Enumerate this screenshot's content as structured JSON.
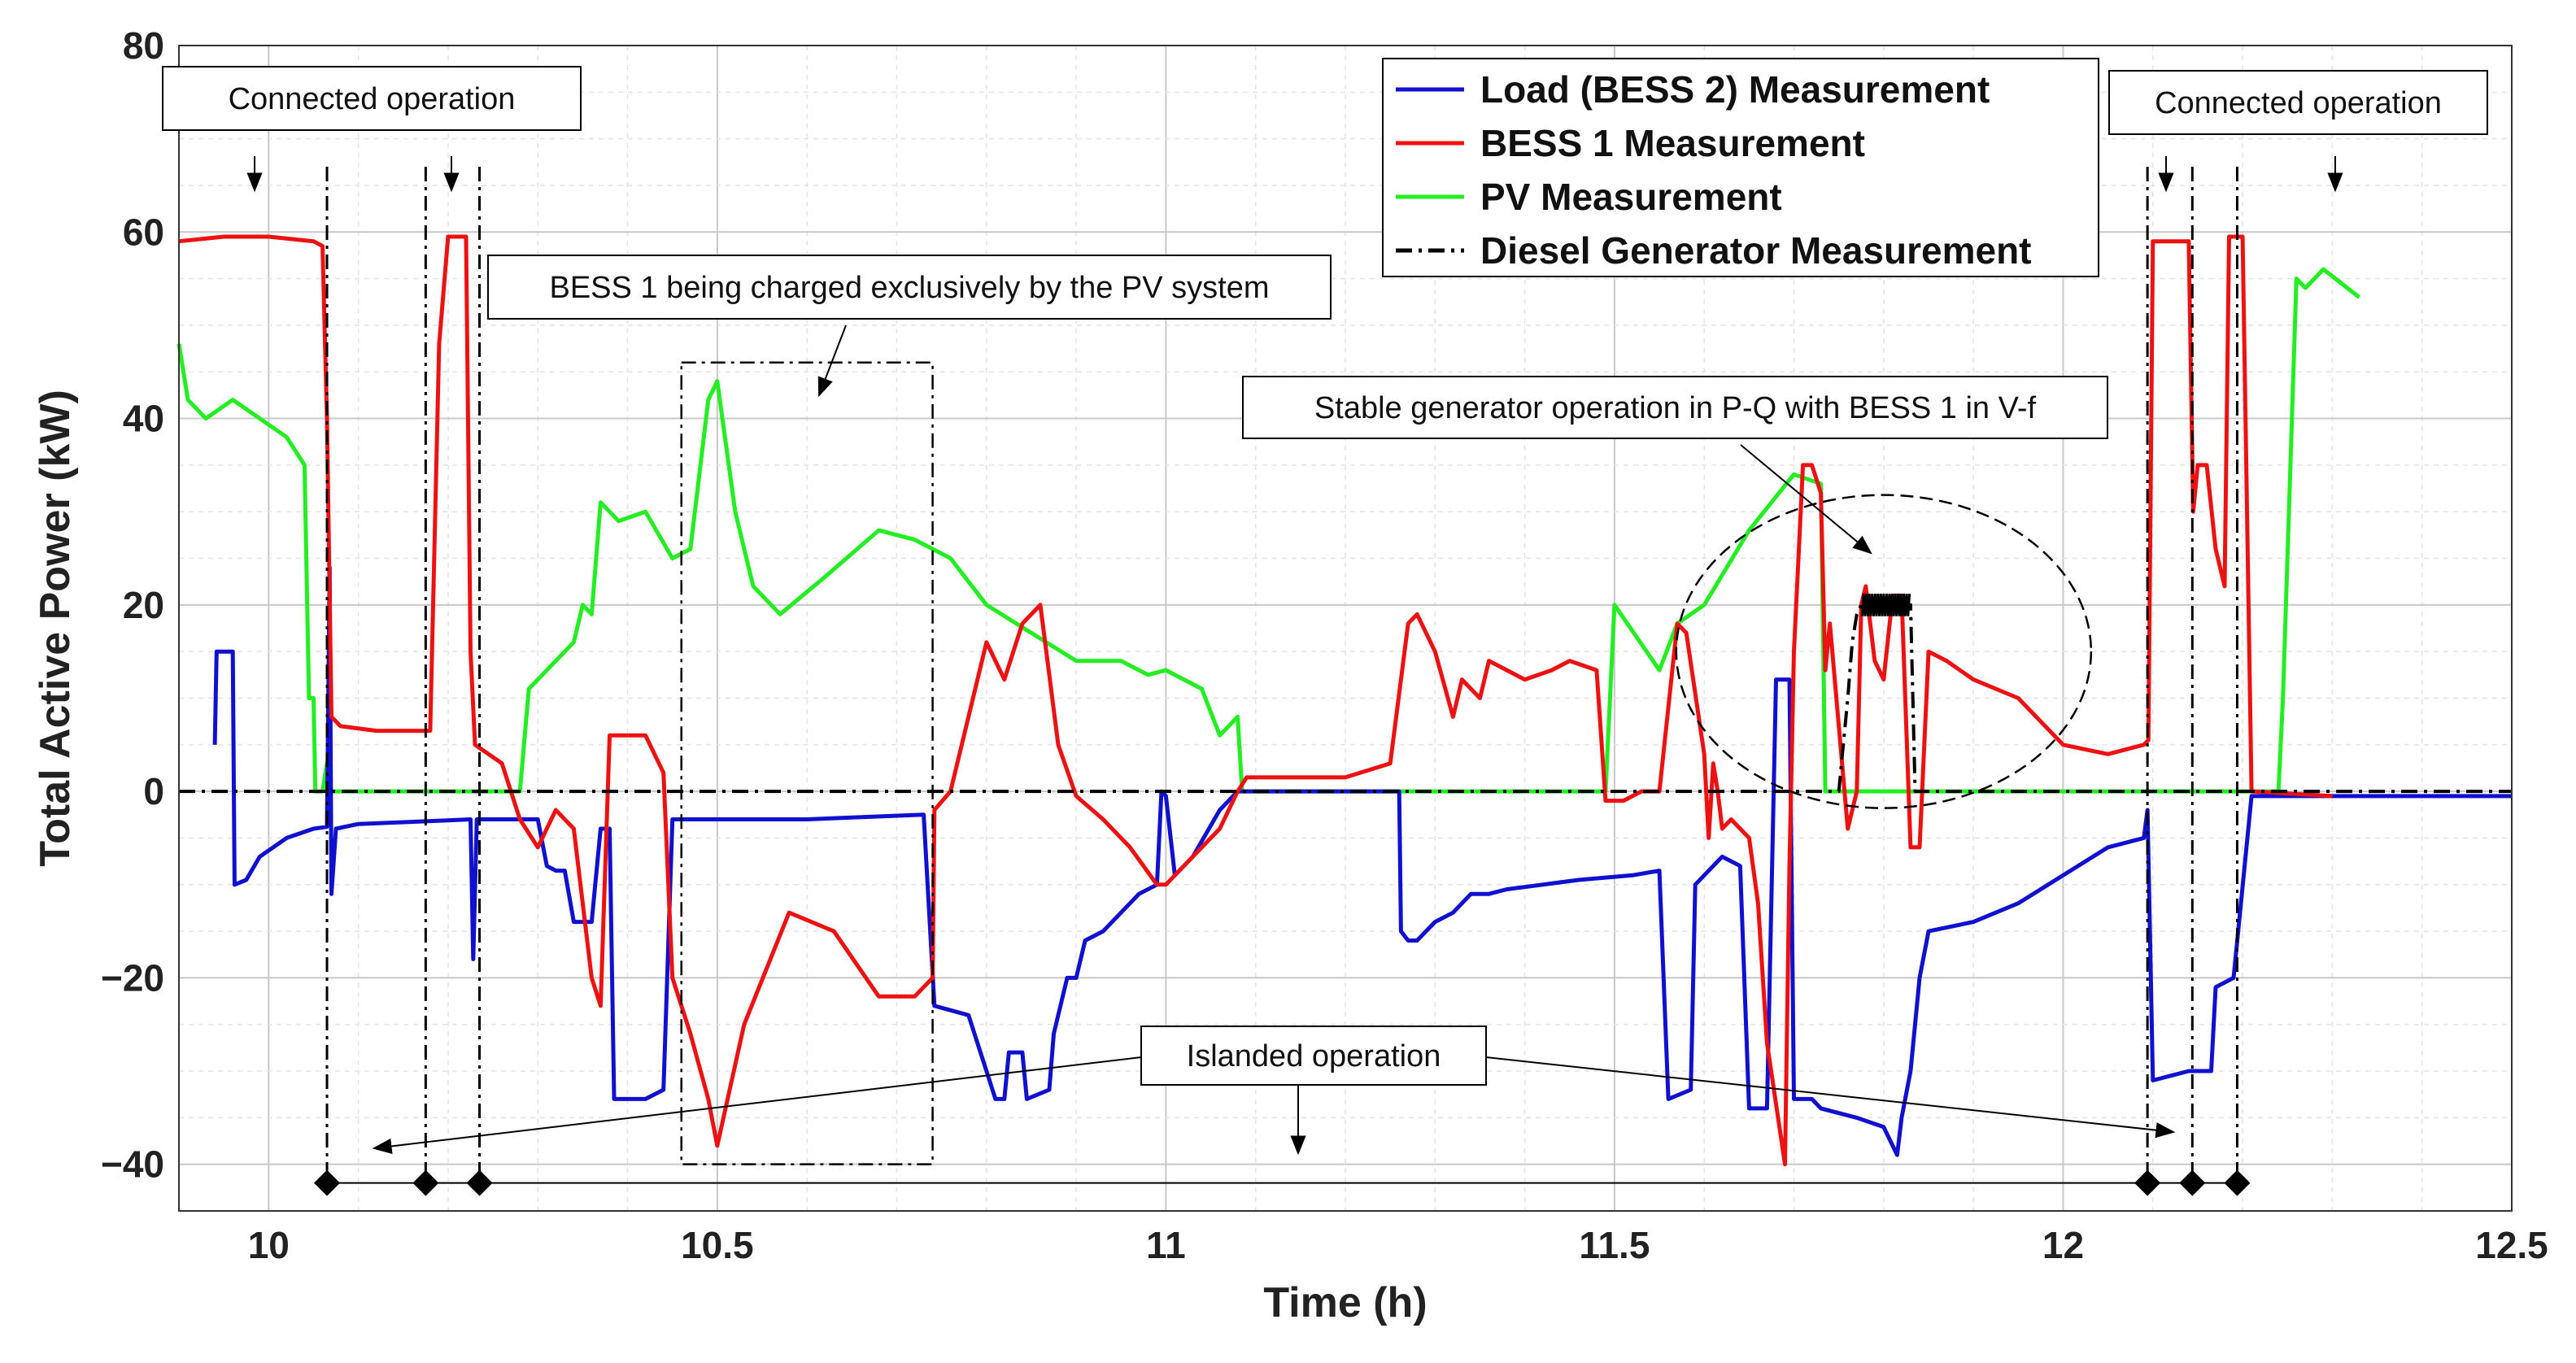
{
  "chart_data": {
    "type": "line",
    "title": "",
    "xlabel": "Time (h)",
    "ylabel": "Total Active Power (kW)",
    "xlim": [
      9.9,
      12.5
    ],
    "ylim": [
      -45,
      80
    ],
    "xticks": [
      10,
      10.5,
      11,
      11.5,
      12,
      12.5
    ],
    "xtick_labels": [
      "10",
      "10.5",
      "11",
      "11.5",
      "12",
      "12.5"
    ],
    "yticks": [
      -40,
      -20,
      0,
      20,
      40,
      60,
      80
    ],
    "ytick_labels": [
      "−40",
      "−20",
      "0",
      "20",
      "40",
      "60",
      "80"
    ],
    "grid": true,
    "legend_position": "top-center",
    "series": [
      {
        "name": "Load (BESS 2) Measurement",
        "color": "#1010d0",
        "style": "solid",
        "points": [
          [
            9.94,
            5
          ],
          [
            9.942,
            15
          ],
          [
            9.96,
            15
          ],
          [
            9.962,
            -10
          ],
          [
            9.975,
            -9.5
          ],
          [
            9.99,
            -7
          ],
          [
            10.02,
            -5
          ],
          [
            10.05,
            -4
          ],
          [
            10.065,
            -3.8
          ],
          [
            10.068,
            24
          ],
          [
            10.07,
            -11
          ],
          [
            10.075,
            -4
          ],
          [
            10.1,
            -3.5
          ],
          [
            10.15,
            -3.3
          ],
          [
            10.2,
            -3.1
          ],
          [
            10.225,
            -3
          ],
          [
            10.228,
            -18
          ],
          [
            10.232,
            -3
          ],
          [
            10.26,
            -3
          ],
          [
            10.3,
            -3
          ],
          [
            10.31,
            -8
          ],
          [
            10.32,
            -8.5
          ],
          [
            10.33,
            -8.5
          ],
          [
            10.34,
            -14
          ],
          [
            10.36,
            -14
          ],
          [
            10.37,
            -4
          ],
          [
            10.38,
            -4
          ],
          [
            10.385,
            -33
          ],
          [
            10.42,
            -33
          ],
          [
            10.44,
            -32
          ],
          [
            10.45,
            -3
          ],
          [
            10.5,
            -3
          ],
          [
            10.6,
            -3
          ],
          [
            10.73,
            -2.5
          ],
          [
            10.742,
            -23
          ],
          [
            10.78,
            -24
          ],
          [
            10.8,
            -30
          ],
          [
            10.81,
            -33
          ],
          [
            10.82,
            -33
          ],
          [
            10.825,
            -28
          ],
          [
            10.84,
            -28
          ],
          [
            10.845,
            -33
          ],
          [
            10.87,
            -32
          ],
          [
            10.875,
            -26
          ],
          [
            10.89,
            -20
          ],
          [
            10.9,
            -20
          ],
          [
            10.91,
            -16
          ],
          [
            10.93,
            -15
          ],
          [
            10.95,
            -13
          ],
          [
            10.97,
            -11
          ],
          [
            10.99,
            -10
          ],
          [
            10.995,
            0
          ],
          [
            11.0,
            -0.5
          ],
          [
            11.01,
            -9
          ],
          [
            11.03,
            -7
          ],
          [
            11.06,
            -2
          ],
          [
            11.08,
            0
          ],
          [
            11.26,
            0
          ],
          [
            11.262,
            -15
          ],
          [
            11.27,
            -16
          ],
          [
            11.28,
            -16
          ],
          [
            11.3,
            -14
          ],
          [
            11.32,
            -13
          ],
          [
            11.34,
            -11
          ],
          [
            11.36,
            -11
          ],
          [
            11.38,
            -10.5
          ],
          [
            11.42,
            -10
          ],
          [
            11.46,
            -9.5
          ],
          [
            11.52,
            -9
          ],
          [
            11.55,
            -8.5
          ],
          [
            11.56,
            -33
          ],
          [
            11.585,
            -32
          ],
          [
            11.59,
            -10
          ],
          [
            11.6,
            -9
          ],
          [
            11.62,
            -7
          ],
          [
            11.64,
            -8
          ],
          [
            11.65,
            -34
          ],
          [
            11.67,
            -34
          ],
          [
            11.68,
            12
          ],
          [
            11.695,
            12
          ],
          [
            11.7,
            -33
          ],
          [
            11.72,
            -33
          ],
          [
            11.73,
            -34
          ],
          [
            11.77,
            -35
          ],
          [
            11.8,
            -36
          ],
          [
            11.815,
            -39
          ],
          [
            11.82,
            -35
          ],
          [
            11.83,
            -30
          ],
          [
            11.84,
            -20
          ],
          [
            11.85,
            -15
          ],
          [
            11.9,
            -14
          ],
          [
            11.95,
            -12
          ],
          [
            12.0,
            -9
          ],
          [
            12.05,
            -6
          ],
          [
            12.09,
            -5
          ],
          [
            12.094,
            -2
          ],
          [
            12.1,
            -31
          ],
          [
            12.14,
            -30
          ],
          [
            12.15,
            -30
          ],
          [
            12.165,
            -30
          ],
          [
            12.17,
            -21
          ],
          [
            12.19,
            -20
          ],
          [
            12.21,
            -0.5
          ],
          [
            12.3,
            -0.5
          ],
          [
            12.5,
            -0.5
          ]
        ]
      },
      {
        "name": "BESS 1 Measurement",
        "color": "#ee1111",
        "style": "solid",
        "points": [
          [
            9.9,
            59
          ],
          [
            9.95,
            59.5
          ],
          [
            10.0,
            59.5
          ],
          [
            10.05,
            59
          ],
          [
            10.06,
            58.5
          ],
          [
            10.065,
            40
          ],
          [
            10.07,
            8
          ],
          [
            10.08,
            7
          ],
          [
            10.12,
            6.5
          ],
          [
            10.18,
            6.5
          ],
          [
            10.19,
            48
          ],
          [
            10.2,
            59.5
          ],
          [
            10.22,
            59.5
          ],
          [
            10.225,
            15
          ],
          [
            10.23,
            5
          ],
          [
            10.26,
            3
          ],
          [
            10.28,
            -3
          ],
          [
            10.3,
            -6
          ],
          [
            10.32,
            -2
          ],
          [
            10.34,
            -4
          ],
          [
            10.36,
            -20
          ],
          [
            10.37,
            -23
          ],
          [
            10.38,
            6
          ],
          [
            10.4,
            6
          ],
          [
            10.42,
            6
          ],
          [
            10.44,
            2
          ],
          [
            10.45,
            -20
          ],
          [
            10.47,
            -26
          ],
          [
            10.49,
            -33
          ],
          [
            10.5,
            -38
          ],
          [
            10.53,
            -25
          ],
          [
            10.58,
            -13
          ],
          [
            10.63,
            -15
          ],
          [
            10.68,
            -22
          ],
          [
            10.72,
            -22
          ],
          [
            10.74,
            -20
          ],
          [
            10.742,
            -2
          ],
          [
            10.76,
            0
          ],
          [
            10.78,
            8
          ],
          [
            10.8,
            16
          ],
          [
            10.82,
            12
          ],
          [
            10.84,
            18
          ],
          [
            10.86,
            20
          ],
          [
            10.88,
            5
          ],
          [
            10.9,
            -0.5
          ],
          [
            10.93,
            -3
          ],
          [
            10.96,
            -6
          ],
          [
            10.99,
            -10
          ],
          [
            11.0,
            -10
          ],
          [
            11.03,
            -7
          ],
          [
            11.06,
            -4
          ],
          [
            11.08,
            0
          ],
          [
            11.09,
            1.5
          ],
          [
            11.15,
            1.5
          ],
          [
            11.2,
            1.5
          ],
          [
            11.25,
            3
          ],
          [
            11.27,
            18
          ],
          [
            11.28,
            19
          ],
          [
            11.3,
            15
          ],
          [
            11.32,
            8
          ],
          [
            11.33,
            12
          ],
          [
            11.35,
            10
          ],
          [
            11.36,
            14
          ],
          [
            11.38,
            13
          ],
          [
            11.4,
            12
          ],
          [
            11.43,
            13
          ],
          [
            11.45,
            14
          ],
          [
            11.48,
            13
          ],
          [
            11.49,
            -1
          ],
          [
            11.51,
            -1
          ],
          [
            11.53,
            0
          ],
          [
            11.55,
            0
          ],
          [
            11.57,
            18
          ],
          [
            11.58,
            17
          ],
          [
            11.6,
            4
          ],
          [
            11.605,
            -5
          ],
          [
            11.61,
            3
          ],
          [
            11.615,
            0
          ],
          [
            11.62,
            -4
          ],
          [
            11.63,
            -3
          ],
          [
            11.65,
            -5
          ],
          [
            11.66,
            -12
          ],
          [
            11.67,
            -27
          ],
          [
            11.69,
            -40
          ],
          [
            11.695,
            -8
          ],
          [
            11.7,
            15
          ],
          [
            11.71,
            35
          ],
          [
            11.72,
            35
          ],
          [
            11.73,
            32
          ],
          [
            11.735,
            13
          ],
          [
            11.74,
            18
          ],
          [
            11.76,
            -4
          ],
          [
            11.77,
            0
          ],
          [
            11.775,
            20
          ],
          [
            11.78,
            22
          ],
          [
            11.79,
            14
          ],
          [
            11.8,
            12
          ],
          [
            11.81,
            21
          ],
          [
            11.82,
            21
          ],
          [
            11.83,
            -6
          ],
          [
            11.84,
            -6
          ],
          [
            11.85,
            15
          ],
          [
            11.87,
            14
          ],
          [
            11.9,
            12
          ],
          [
            11.95,
            10
          ],
          [
            12.0,
            5
          ],
          [
            12.05,
            4
          ],
          [
            12.09,
            5
          ],
          [
            12.095,
            5.5
          ],
          [
            12.1,
            59
          ],
          [
            12.14,
            59
          ],
          [
            12.145,
            30
          ],
          [
            12.15,
            35
          ],
          [
            12.16,
            35
          ],
          [
            12.17,
            26
          ],
          [
            12.18,
            22
          ],
          [
            12.185,
            59.5
          ],
          [
            12.2,
            59.5
          ],
          [
            12.21,
            0
          ],
          [
            12.3,
            -0.5
          ]
        ]
      },
      {
        "name": "PV Measurement",
        "color": "#22ee22",
        "style": "solid",
        "points": [
          [
            9.9,
            48
          ],
          [
            9.91,
            42
          ],
          [
            9.93,
            40
          ],
          [
            9.96,
            42
          ],
          [
            9.99,
            40
          ],
          [
            10.02,
            38
          ],
          [
            10.04,
            35
          ],
          [
            10.045,
            10
          ],
          [
            10.05,
            10
          ],
          [
            10.052,
            0
          ],
          [
            10.06,
            0
          ],
          [
            10.065,
            3
          ],
          [
            10.07,
            0
          ],
          [
            10.23,
            0
          ],
          [
            10.28,
            0
          ],
          [
            10.29,
            11
          ],
          [
            10.32,
            14
          ],
          [
            10.34,
            16
          ],
          [
            10.35,
            20
          ],
          [
            10.36,
            19
          ],
          [
            10.37,
            31
          ],
          [
            10.39,
            29
          ],
          [
            10.42,
            30
          ],
          [
            10.45,
            25
          ],
          [
            10.47,
            26
          ],
          [
            10.49,
            42
          ],
          [
            10.5,
            44
          ],
          [
            10.52,
            30
          ],
          [
            10.54,
            22
          ],
          [
            10.57,
            19
          ],
          [
            10.62,
            23
          ],
          [
            10.68,
            28
          ],
          [
            10.72,
            27
          ],
          [
            10.76,
            25
          ],
          [
            10.8,
            20
          ],
          [
            10.85,
            17
          ],
          [
            10.9,
            14
          ],
          [
            10.95,
            14
          ],
          [
            10.98,
            12.5
          ],
          [
            11.0,
            13
          ],
          [
            11.04,
            11
          ],
          [
            11.06,
            6
          ],
          [
            11.08,
            8
          ],
          [
            11.085,
            0
          ],
          [
            11.49,
            0
          ],
          [
            11.5,
            20
          ],
          [
            11.55,
            13
          ],
          [
            11.57,
            18
          ],
          [
            11.6,
            20
          ],
          [
            11.65,
            28
          ],
          [
            11.7,
            34
          ],
          [
            11.73,
            33
          ],
          [
            11.735,
            0
          ],
          [
            12.24,
            0
          ],
          [
            12.245,
            10
          ],
          [
            12.26,
            55
          ],
          [
            12.27,
            54
          ],
          [
            12.29,
            56
          ],
          [
            12.33,
            53
          ]
        ]
      },
      {
        "name": "Diesel Generator Measurement",
        "color": "#000000",
        "style": "dashdot",
        "points": [
          [
            9.9,
            0
          ],
          [
            11.73,
            0
          ],
          [
            11.75,
            0
          ],
          [
            11.76,
            10
          ],
          [
            11.765,
            16
          ],
          [
            11.77,
            19
          ],
          [
            11.775,
            20
          ],
          [
            11.83,
            20
          ],
          [
            11.835,
            0
          ],
          [
            12.5,
            0
          ]
        ]
      }
    ],
    "vertical_markers": [
      10.065,
      10.175,
      10.235,
      12.094,
      12.144,
      12.194
    ],
    "islanded_span": [
      10.065,
      12.194
    ],
    "annotations": [
      {
        "text": "Connected operation",
        "arrow_to": [
          9.98,
          67
        ]
      },
      {
        "text": "Connected operation",
        "arrow_to": [
          12.31,
          67
        ]
      },
      {
        "text": "BESS 1 being charged exclusively by the PV system",
        "highlight": [
          10.46,
          10.74,
          -40,
          46
        ]
      },
      {
        "text": "Stable generator operation in P-Q with BESS 1 in V-f",
        "highlight_center": [
          11.8,
          15
        ]
      },
      {
        "text": "Islanded operation",
        "arrow_to": [
          11.15,
          -39
        ]
      }
    ]
  }
}
